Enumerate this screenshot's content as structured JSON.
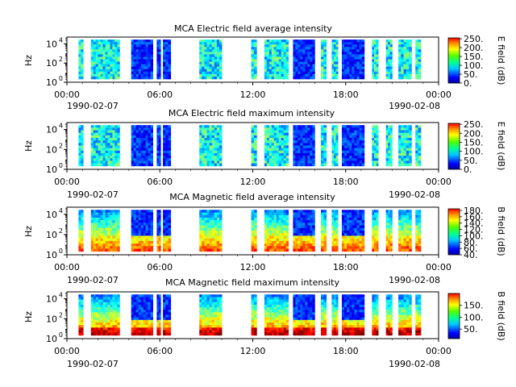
{
  "chart_data": [
    {
      "type": "heatmap",
      "title": "MCA  Electric field average intensity",
      "ylabel": "Hz",
      "yscale": "log",
      "ylim": [
        1,
        50000
      ],
      "yticks": [
        {
          "v": 1,
          "b": "10",
          "e": "0"
        },
        {
          "v": 100,
          "b": "10",
          "e": "2"
        },
        {
          "v": 10000,
          "b": "10",
          "e": "4"
        }
      ],
      "xlim": [
        0,
        24
      ],
      "x_ticks": [
        "00:00",
        "06:00",
        "12:00",
        "18:00",
        "00:00"
      ],
      "x_start_date": "1990-02-07",
      "x_end_date": "1990-02-08",
      "colorbar": {
        "label": "E field (dB)",
        "range": [
          0,
          255
        ],
        "ticks": [
          "250.",
          "200.",
          "150.",
          "100.",
          "50.",
          "0."
        ],
        "tick_values": [
          250,
          200,
          150,
          100,
          50,
          0
        ]
      },
      "grid": false
    },
    {
      "type": "heatmap",
      "title": "MCA  Electric field maximum intensity",
      "ylabel": "Hz",
      "yscale": "log",
      "ylim": [
        1,
        50000
      ],
      "yticks": [
        {
          "v": 1,
          "b": "10",
          "e": "0"
        },
        {
          "v": 100,
          "b": "10",
          "e": "2"
        },
        {
          "v": 10000,
          "b": "10",
          "e": "4"
        }
      ],
      "xlim": [
        0,
        24
      ],
      "x_ticks": [
        "00:00",
        "06:00",
        "12:00",
        "18:00",
        "00:00"
      ],
      "x_start_date": "1990-02-07",
      "x_end_date": "1990-02-08",
      "colorbar": {
        "label": "E field (dB)",
        "range": [
          0,
          255
        ],
        "ticks": [
          "250.",
          "200.",
          "150.",
          "100.",
          "50.",
          "0."
        ],
        "tick_values": [
          250,
          200,
          150,
          100,
          50,
          0
        ]
      },
      "grid": false
    },
    {
      "type": "heatmap",
      "title": "MCA  Magnetic field average intensity",
      "ylabel": "Hz",
      "yscale": "log",
      "ylim": [
        1,
        50000
      ],
      "yticks": [
        {
          "v": 1,
          "b": "10",
          "e": "0"
        },
        {
          "v": 100,
          "b": "10",
          "e": "2"
        },
        {
          "v": 10000,
          "b": "10",
          "e": "4"
        }
      ],
      "xlim": [
        0,
        24
      ],
      "x_ticks": [
        "00:00",
        "06:00",
        "12:00",
        "18:00",
        "00:00"
      ],
      "x_start_date": "1990-02-07",
      "x_end_date": "1990-02-08",
      "colorbar": {
        "label": "B field (dB)",
        "range": [
          40,
          185
        ],
        "ticks": [
          "180.",
          "160.",
          "140.",
          "120.",
          "100.",
          "80.",
          "60.",
          "40."
        ],
        "tick_values": [
          180,
          160,
          140,
          120,
          100,
          80,
          60,
          40
        ]
      },
      "grid": false
    },
    {
      "type": "heatmap",
      "title": "MCA  Magnetic field maximum intensity",
      "ylabel": "Hz",
      "yscale": "log",
      "ylim": [
        1,
        50000
      ],
      "yticks": [
        {
          "v": 1,
          "b": "10",
          "e": "0"
        },
        {
          "v": 100,
          "b": "10",
          "e": "2"
        },
        {
          "v": 10000,
          "b": "10",
          "e": "4"
        }
      ],
      "xlim": [
        0,
        24
      ],
      "x_ticks": [
        "00:00",
        "06:00",
        "12:00",
        "18:00",
        "00:00"
      ],
      "x_start_date": "1990-02-07",
      "x_end_date": "1990-02-08",
      "colorbar": {
        "label": "B field (dB)",
        "range": [
          10,
          200
        ],
        "ticks": [
          "150.",
          "100.",
          "50."
        ],
        "tick_values": [
          150,
          100,
          50
        ]
      },
      "grid": false
    }
  ],
  "data_segments_hours": [
    [
      0.75,
      1.05
    ],
    [
      1.55,
      3.4
    ],
    [
      4.15,
      5.55
    ],
    [
      5.8,
      6.05
    ],
    [
      6.2,
      6.7
    ],
    [
      8.55,
      10.0
    ],
    [
      11.9,
      12.25
    ],
    [
      12.75,
      14.3
    ],
    [
      14.6,
      16.0
    ],
    [
      16.4,
      16.75
    ],
    [
      17.1,
      17.5
    ],
    [
      17.75,
      19.2
    ],
    [
      19.7,
      20.1
    ],
    [
      20.6,
      21.0
    ],
    [
      21.4,
      22.25
    ],
    [
      22.5,
      22.85
    ]
  ]
}
